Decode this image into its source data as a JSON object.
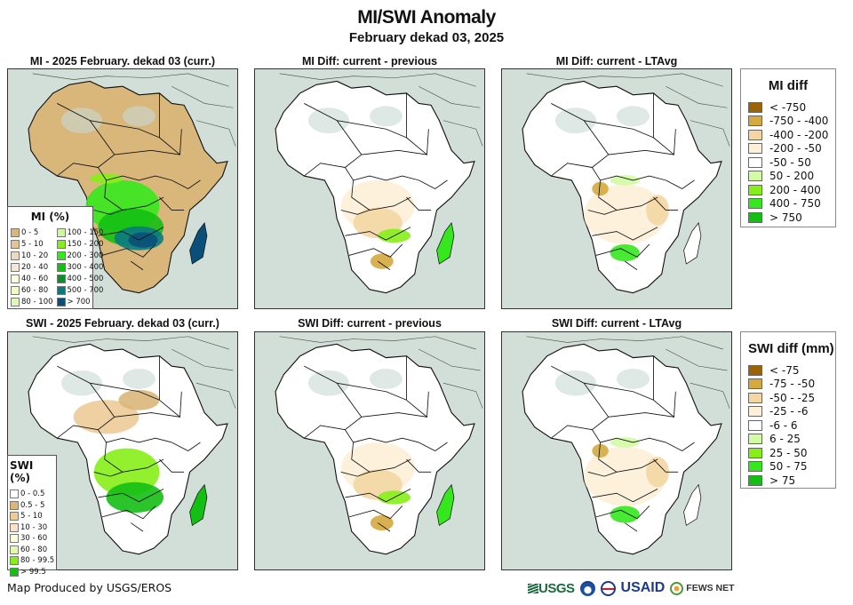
{
  "header": {
    "title": "MI/SWI Anomaly",
    "subtitle": "February dekad 03, 2025"
  },
  "panels": [
    {
      "title": "MI - 2025 February. dekad 03 (curr.)",
      "variable": "MI",
      "type": "current"
    },
    {
      "title": "MI Diff: current - previous",
      "variable": "MI",
      "type": "diff-previous"
    },
    {
      "title": "MI Diff: current - LTAvg",
      "variable": "MI",
      "type": "diff-ltavg"
    },
    {
      "title": "SWI - 2025 February. dekad 03 (curr.)",
      "variable": "SWI",
      "type": "current"
    },
    {
      "title": "SWI Diff: current - previous",
      "variable": "SWI",
      "type": "diff-previous"
    },
    {
      "title": "SWI Diff: current - LTAvg",
      "variable": "SWI",
      "type": "diff-ltavg"
    }
  ],
  "legends": {
    "mi_pct": {
      "title": "MI (%)",
      "items": [
        {
          "label": "0 - 5",
          "color": "#d9b77a"
        },
        {
          "label": "5 - 10",
          "color": "#e2c596"
        },
        {
          "label": "10 - 20",
          "color": "#edd9bd"
        },
        {
          "label": "20 - 40",
          "color": "#f6e7d3"
        },
        {
          "label": "40 - 60",
          "color": "#fdfde0"
        },
        {
          "label": "60 - 80",
          "color": "#f2fbc4"
        },
        {
          "label": "80 - 100",
          "color": "#dff7b8"
        },
        {
          "label": "100 - 150",
          "color": "#ccf7a0"
        },
        {
          "label": "150 - 200",
          "color": "#86ee18"
        },
        {
          "label": "200 - 300",
          "color": "#35e81e"
        },
        {
          "label": "300 - 400",
          "color": "#14bf14"
        },
        {
          "label": "400 - 500",
          "color": "#0d8e2a"
        },
        {
          "label": "500 - 700",
          "color": "#0a7a80"
        },
        {
          "label": "> 700",
          "color": "#0a4f7a"
        }
      ]
    },
    "swi_pct": {
      "title": "SWI (%)",
      "items": [
        {
          "label": "0 - 0.5",
          "color": "#ffffff"
        },
        {
          "label": "0.5 - 5",
          "color": "#d9b77a"
        },
        {
          "label": "5 - 10",
          "color": "#eccb98"
        },
        {
          "label": "10 - 30",
          "color": "#f9e2c6"
        },
        {
          "label": "30 - 60",
          "color": "#fdfde0"
        },
        {
          "label": "60 - 80",
          "color": "#e3f9b0"
        },
        {
          "label": "80 - 99.5",
          "color": "#86ee18"
        },
        {
          "label": "> 99.5",
          "color": "#14bf14"
        }
      ]
    },
    "mi_diff": {
      "title": "MI diff",
      "items": [
        {
          "label": "< -750",
          "color": "#9a6308"
        },
        {
          "label": "-750 - -400",
          "color": "#d4a93e"
        },
        {
          "label": "-400 - -200",
          "color": "#f3d6a3"
        },
        {
          "label": "-200 - -50",
          "color": "#fdefd8"
        },
        {
          "label": "-50 - 50",
          "color": "#ffffff"
        },
        {
          "label": "50 - 200",
          "color": "#d3fba4"
        },
        {
          "label": "200 - 400",
          "color": "#86ee18"
        },
        {
          "label": "400 - 750",
          "color": "#35e81e"
        },
        {
          "label": "> 750",
          "color": "#14bf14"
        }
      ]
    },
    "swi_diff": {
      "title": "SWI diff (mm)",
      "items": [
        {
          "label": "< -75",
          "color": "#9a6308"
        },
        {
          "label": "-75 - -50",
          "color": "#d4a93e"
        },
        {
          "label": "-50 - -25",
          "color": "#f3d6a3"
        },
        {
          "label": "-25 - -6",
          "color": "#fdefd8"
        },
        {
          "label": "-6 - 6",
          "color": "#ffffff"
        },
        {
          "label": "6 - 25",
          "color": "#d3fba4"
        },
        {
          "label": "25 - 50",
          "color": "#86ee18"
        },
        {
          "label": "50 - 75",
          "color": "#35e81e"
        },
        {
          "label": "> 75",
          "color": "#14bf14"
        }
      ]
    }
  },
  "colors": {
    "ocean": "#d2dfd9",
    "border": "#111111"
  },
  "footer": {
    "credit": "Map Produced by USGS/EROS",
    "logos": {
      "usgs": "USGS",
      "noaa": "noaa-logo",
      "state": "state-dept-logo",
      "usaid": "USAID",
      "fews": "FEWS NET"
    }
  }
}
